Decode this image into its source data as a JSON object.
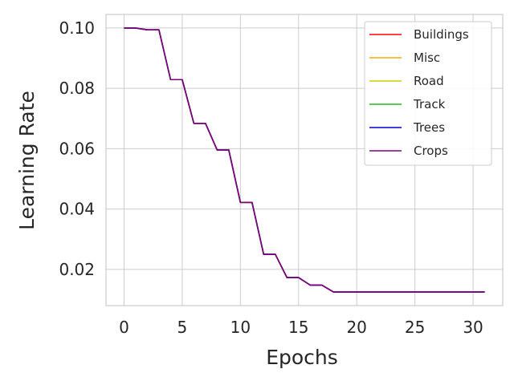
{
  "chart_data": {
    "type": "line",
    "title": "",
    "xlabel": "Epochs",
    "ylabel": "Learning Rate",
    "xlim": [
      -1.55,
      32.55
    ],
    "ylim": [
      0.008,
      0.1045
    ],
    "xticks": [
      0,
      5,
      10,
      15,
      20,
      25,
      30
    ],
    "yticks": [
      0.02,
      0.04,
      0.06,
      0.08,
      0.1
    ],
    "ytick_labels": [
      "0.02",
      "0.04",
      "0.06",
      "0.08",
      "0.10"
    ],
    "grid": true,
    "legend_position": "top-right",
    "x": [
      0,
      1,
      2,
      3,
      4,
      5,
      6,
      7,
      8,
      9,
      10,
      11,
      12,
      13,
      14,
      15,
      16,
      17,
      18,
      19,
      20,
      21,
      22,
      23,
      24,
      25,
      26,
      27,
      28,
      29,
      30,
      31
    ],
    "series": [
      {
        "name": "Buildings",
        "color": "#ff0000",
        "values": [
          0.1,
          0.1,
          0.0994,
          0.0994,
          0.0829,
          0.0829,
          0.0684,
          0.0684,
          0.0596,
          0.0596,
          0.0422,
          0.0422,
          0.025,
          0.025,
          0.0173,
          0.0173,
          0.0148,
          0.0148,
          0.0125,
          0.0125,
          0.0125,
          0.0125,
          0.0125,
          0.0125,
          0.0125,
          0.0125,
          0.0125,
          0.0125,
          0.0125,
          0.0125,
          0.0125,
          0.0125
        ]
      },
      {
        "name": "Misc",
        "color": "#ffa500",
        "values": [
          0.1,
          0.1,
          0.0994,
          0.0994,
          0.0829,
          0.0829,
          0.0684,
          0.0684,
          0.0596,
          0.0596,
          0.0422,
          0.0422,
          0.025,
          0.025,
          0.0173,
          0.0173,
          0.0148,
          0.0148,
          0.0125,
          0.0125,
          0.0125,
          0.0125,
          0.0125,
          0.0125,
          0.0125,
          0.0125,
          0.0125,
          0.0125,
          0.0125,
          0.0125,
          0.0125,
          0.0125
        ]
      },
      {
        "name": "Road",
        "color": "#d4c800",
        "values": [
          0.1,
          0.1,
          0.0994,
          0.0994,
          0.0829,
          0.0829,
          0.0684,
          0.0684,
          0.0596,
          0.0596,
          0.0422,
          0.0422,
          0.025,
          0.025,
          0.0173,
          0.0173,
          0.0148,
          0.0148,
          0.0125,
          0.0125,
          0.0125,
          0.0125,
          0.0125,
          0.0125,
          0.0125,
          0.0125,
          0.0125,
          0.0125,
          0.0125,
          0.0125,
          0.0125,
          0.0125
        ]
      },
      {
        "name": "Track",
        "color": "#22bb22",
        "values": [
          0.1,
          0.1,
          0.0994,
          0.0994,
          0.0829,
          0.0829,
          0.0684,
          0.0684,
          0.0596,
          0.0596,
          0.0422,
          0.0422,
          0.025,
          0.025,
          0.0173,
          0.0173,
          0.0148,
          0.0148,
          0.0125,
          0.0125,
          0.0125,
          0.0125,
          0.0125,
          0.0125,
          0.0125,
          0.0125,
          0.0125,
          0.0125,
          0.0125,
          0.0125,
          0.0125,
          0.0125
        ]
      },
      {
        "name": "Trees",
        "color": "#0000cc",
        "values": [
          0.1,
          0.1,
          0.0994,
          0.0994,
          0.0829,
          0.0829,
          0.0684,
          0.0684,
          0.0596,
          0.0596,
          0.0422,
          0.0422,
          0.025,
          0.025,
          0.0173,
          0.0173,
          0.0148,
          0.0148,
          0.0125,
          0.0125,
          0.0125,
          0.0125,
          0.0125,
          0.0125,
          0.0125,
          0.0125,
          0.0125,
          0.0125,
          0.0125,
          0.0125,
          0.0125,
          0.0125
        ]
      },
      {
        "name": "Crops",
        "color": "#800080",
        "values": [
          0.1,
          0.1,
          0.0994,
          0.0994,
          0.0829,
          0.0829,
          0.0684,
          0.0684,
          0.0596,
          0.0596,
          0.0422,
          0.0422,
          0.025,
          0.025,
          0.0173,
          0.0173,
          0.0148,
          0.0148,
          0.0125,
          0.0125,
          0.0125,
          0.0125,
          0.0125,
          0.0125,
          0.0125,
          0.0125,
          0.0125,
          0.0125,
          0.0125,
          0.0125,
          0.0125,
          0.0125
        ]
      }
    ]
  }
}
